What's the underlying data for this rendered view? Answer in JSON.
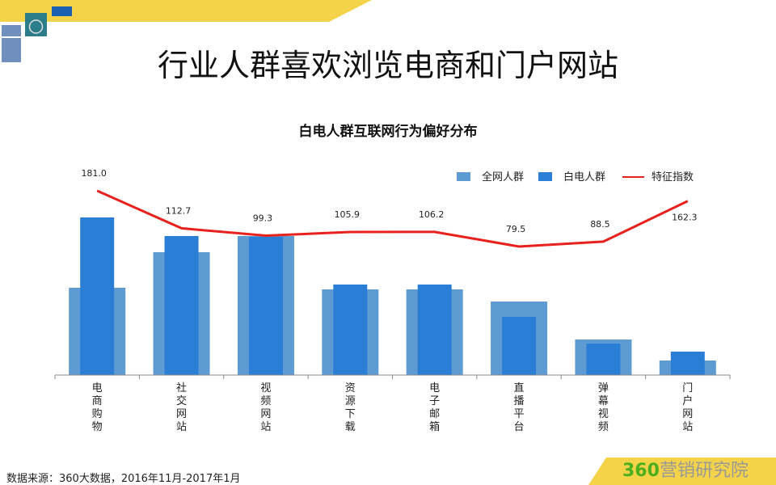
{
  "page": {
    "title": "行业人群喜欢浏览电商和门户网站",
    "source": "数据来源：360大数据，2016年11月-2017年1月",
    "brand_number": "360",
    "brand_text": "营销研究院"
  },
  "chart_data": {
    "type": "bar",
    "title": "白电人群互联网行为偏好分布",
    "categories": [
      "电商购物",
      "社交网站",
      "视频网站",
      "资源下载",
      "电子邮箱",
      "直播平台",
      "弹幕视频",
      "门户网站"
    ],
    "series": [
      {
        "name": "全网人群",
        "type": "bar",
        "color": "#5f9bd3",
        "values": [
          108,
          152,
          172,
          106,
          106,
          91,
          44,
          18
        ]
      },
      {
        "name": "白电人群",
        "type": "bar",
        "color": "#2a7ed6",
        "values": [
          195,
          172,
          171,
          112,
          112,
          72,
          39,
          29
        ]
      },
      {
        "name": "特征指数",
        "type": "line",
        "color": "#e8211c",
        "values": [
          181.0,
          112.7,
          99.3,
          105.9,
          106.2,
          79.5,
          88.5,
          162.3
        ]
      }
    ],
    "data_labels": [
      "181.0",
      "112.7",
      "99.3",
      "105.9",
      "106.2",
      "79.5",
      "88.5",
      "162.3"
    ],
    "grid": false,
    "legend": "top-right"
  }
}
